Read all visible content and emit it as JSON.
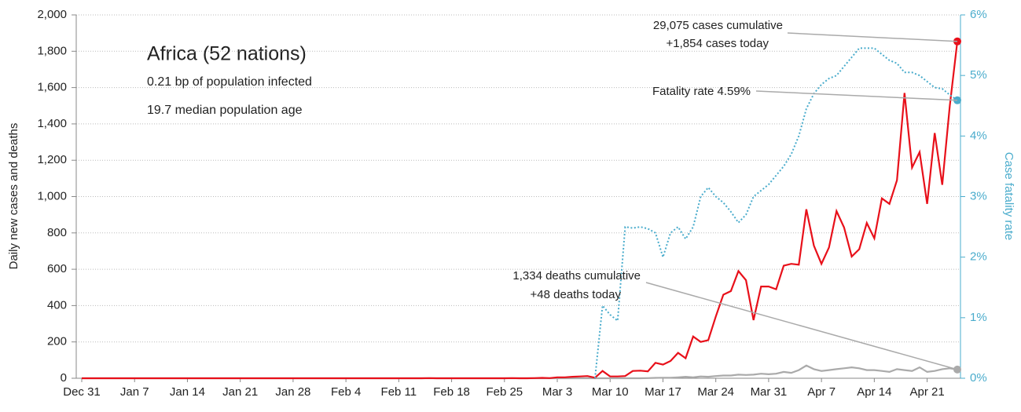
{
  "chart_data": {
    "type": "line",
    "title": "Africa (52 nations)",
    "subtitle_lines": [
      "0.21 bp of population infected",
      "19.7 median population age"
    ],
    "y_label": "Daily new cases and deaths",
    "y2_label": "Case fatality rate",
    "annotations": [
      "29,075 cases cumulative",
      "+1,854 cases today",
      "Fatality rate 4.59%",
      "1,334 deaths cumulative",
      "+48 deaths today"
    ],
    "categories": [
      "Dec 31",
      null,
      null,
      null,
      null,
      null,
      null,
      "Jan 7",
      null,
      null,
      null,
      null,
      null,
      null,
      "Jan 14",
      null,
      null,
      null,
      null,
      null,
      null,
      "Jan 21",
      null,
      null,
      null,
      null,
      null,
      null,
      "Jan 28",
      null,
      null,
      null,
      null,
      null,
      null,
      "Feb 4",
      null,
      null,
      null,
      null,
      null,
      null,
      "Feb 11",
      null,
      null,
      null,
      null,
      null,
      null,
      "Feb 18",
      null,
      null,
      null,
      null,
      null,
      null,
      "Feb 25",
      null,
      null,
      null,
      null,
      null,
      null,
      "Mar 3",
      null,
      null,
      null,
      null,
      null,
      null,
      "Mar 10",
      null,
      null,
      null,
      null,
      null,
      null,
      "Mar 17",
      null,
      null,
      null,
      null,
      null,
      null,
      "Mar 24",
      null,
      null,
      null,
      null,
      null,
      null,
      "Mar 31",
      null,
      null,
      null,
      null,
      null,
      null,
      "Apr 7",
      null,
      null,
      null,
      null,
      null,
      null,
      "Apr 14",
      null,
      null,
      null,
      null,
      null,
      null,
      "Apr 21",
      null,
      null,
      null,
      null
    ],
    "series": [
      {
        "color": "#aaaaaa",
        "style": "solid",
        "axis": "y",
        "values": [
          0,
          0,
          0,
          0,
          0,
          0,
          0,
          0,
          0,
          0,
          0,
          0,
          0,
          0,
          0,
          0,
          0,
          0,
          0,
          0,
          0,
          0,
          0,
          0,
          0,
          0,
          0,
          0,
          0,
          0,
          0,
          0,
          0,
          0,
          0,
          0,
          0,
          0,
          0,
          0,
          0,
          0,
          0,
          0,
          0,
          0,
          0,
          0,
          0,
          0,
          0,
          0,
          0,
          0,
          0,
          0,
          0,
          0,
          0,
          0,
          0,
          0,
          0,
          0,
          0,
          0,
          0,
          0,
          0,
          0,
          0,
          0,
          0,
          0,
          0,
          1,
          2,
          3,
          3,
          5,
          8,
          5,
          10,
          8,
          12,
          15,
          15,
          20,
          18,
          20,
          25,
          22,
          25,
          35,
          30,
          45,
          70,
          50,
          40,
          45,
          50,
          55,
          60,
          55,
          45,
          45,
          40,
          35,
          50,
          45,
          40,
          60,
          35,
          40,
          50,
          55,
          48
        ]
      },
      {
        "color": "#e8101a",
        "style": "solid",
        "axis": "y",
        "values": [
          0,
          0,
          0,
          0,
          0,
          0,
          0,
          0,
          0,
          0,
          0,
          0,
          0,
          0,
          0,
          0,
          0,
          0,
          0,
          0,
          0,
          0,
          0,
          0,
          0,
          0,
          0,
          0,
          0,
          0,
          0,
          0,
          0,
          0,
          0,
          0,
          0,
          0,
          0,
          0,
          0,
          0,
          0,
          0,
          0,
          0,
          1,
          0,
          0,
          0,
          0,
          0,
          0,
          0,
          0,
          0,
          0,
          1,
          0,
          0,
          1,
          2,
          1,
          5,
          5,
          8,
          10,
          12,
          3,
          40,
          10,
          10,
          12,
          40,
          42,
          38,
          85,
          75,
          95,
          140,
          110,
          230,
          200,
          210,
          340,
          460,
          480,
          590,
          540,
          320,
          505,
          505,
          490,
          620,
          630,
          625,
          930,
          730,
          630,
          720,
          920,
          830,
          670,
          710,
          855,
          770,
          990,
          960,
          1090,
          1570,
          1160,
          1245,
          960,
          1350,
          1065,
          1500,
          1854
        ]
      },
      {
        "color": "#4aaccc",
        "style": "dotted",
        "axis": "y2",
        "values": [
          null,
          null,
          null,
          null,
          null,
          null,
          null,
          null,
          null,
          null,
          null,
          null,
          null,
          null,
          null,
          null,
          null,
          null,
          null,
          null,
          null,
          null,
          null,
          null,
          null,
          null,
          null,
          null,
          null,
          null,
          null,
          null,
          null,
          null,
          null,
          null,
          null,
          null,
          null,
          null,
          null,
          null,
          null,
          null,
          null,
          null,
          null,
          null,
          null,
          null,
          null,
          null,
          null,
          null,
          null,
          null,
          null,
          null,
          null,
          null,
          null,
          null,
          null,
          null,
          null,
          null,
          null,
          null,
          0,
          1.2,
          1.05,
          0.95,
          2.5,
          2.48,
          2.5,
          2.47,
          2.4,
          2.0,
          2.4,
          2.5,
          2.3,
          2.5,
          3.0,
          3.15,
          3.0,
          2.9,
          2.75,
          2.57,
          2.7,
          3.0,
          3.1,
          3.2,
          3.35,
          3.5,
          3.7,
          4.0,
          4.45,
          4.7,
          4.85,
          4.95,
          5.0,
          5.15,
          5.3,
          5.45,
          5.45,
          5.45,
          5.35,
          5.25,
          5.2,
          5.05,
          5.05,
          5.0,
          4.9,
          4.8,
          4.78,
          4.68,
          4.59
        ]
      }
    ],
    "ylim": [
      0,
      2000
    ],
    "yticks": [
      0,
      200,
      400,
      600,
      800,
      {
        "value": 1000,
        "label": "1,000"
      },
      {
        "value": 1200,
        "label": "1,200"
      },
      {
        "value": 1400,
        "label": "1,400"
      },
      {
        "value": 1600,
        "label": "1,600"
      },
      {
        "value": 1800,
        "label": "1,800"
      },
      {
        "value": 2000,
        "label": "2,000"
      }
    ],
    "y2lim": [
      0,
      6
    ],
    "y2ticks": [
      {
        "value": 0,
        "label": "0%"
      },
      {
        "value": 1,
        "label": "1%"
      },
      {
        "value": 2,
        "label": "2%"
      },
      {
        "value": 3,
        "label": "3%"
      },
      {
        "value": 4,
        "label": "4%"
      },
      {
        "value": 5,
        "label": "5%"
      },
      {
        "value": 6,
        "label": "6%"
      }
    ],
    "grid": true
  }
}
